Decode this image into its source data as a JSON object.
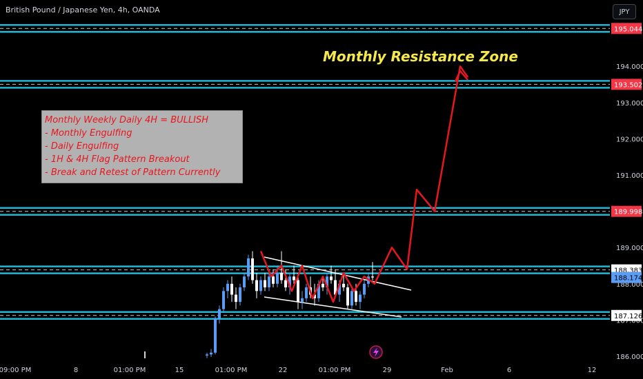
{
  "header": {
    "title": "British Pound / Japanese Yen, 4h, OANDA",
    "currency": "JPY"
  },
  "annotations": {
    "resistance_label": "Monthly Resistance Zone",
    "notes": [
      "Monthly Weekly Daily 4H = BULLISH",
      "- Monthly Engulfing",
      "- Daily Engulfing",
      "- 1H & 4H Flag Pattern Breakout",
      "- Break and Retest of Pattern Currently"
    ]
  },
  "colors": {
    "background": "#000000",
    "candle_up": "#5b9cf5",
    "candle_down": "#ffffff",
    "zone_line": "#22b6d4",
    "price_label_red": "#f23645",
    "projection": "#e8161e",
    "annotation_yellow": "#f5e84a"
  },
  "chart_data": {
    "type": "candlestick",
    "symbol": "British Pound / Japanese Yen, 4h, OANDA",
    "ylim": [
      185.9,
      195.5
    ],
    "y_ticks": [
      "194.000",
      "193.000",
      "192.000",
      "191.000",
      "189.000",
      "188.000",
      "187.000",
      "186.000"
    ],
    "x_ticks": [
      "09:00 PM",
      "8",
      "01:00 PM",
      "15",
      "01:00 PM",
      "22",
      "01:00 PM",
      "29",
      "Feb",
      "6",
      "12"
    ],
    "price_labels": [
      {
        "value": 195.044,
        "label": "195.044",
        "style": "red"
      },
      {
        "value": 193.502,
        "label": "193.502",
        "style": "red"
      },
      {
        "value": 189.998,
        "label": "189.998",
        "style": "red"
      },
      {
        "value": 188.383,
        "label": "188.383",
        "style": "white"
      },
      {
        "value": 188.174,
        "label": "188.174",
        "style": "blue"
      },
      {
        "value": 187.126,
        "label": "187.126",
        "style": "white"
      }
    ],
    "zones": [
      195.044,
      193.502,
      189.998,
      188.383,
      187.126
    ],
    "current_price": 188.174,
    "candles": [
      {
        "o": 186.02,
        "h": 186.1,
        "l": 185.95,
        "c": 186.05
      },
      {
        "o": 186.05,
        "h": 186.2,
        "l": 185.98,
        "c": 186.1
      },
      {
        "o": 186.1,
        "h": 187.1,
        "l": 186.05,
        "c": 187.05
      },
      {
        "o": 187.05,
        "h": 187.4,
        "l": 186.9,
        "c": 187.3
      },
      {
        "o": 187.3,
        "h": 187.9,
        "l": 187.2,
        "c": 187.8
      },
      {
        "o": 187.8,
        "h": 188.1,
        "l": 187.6,
        "c": 188.0
      },
      {
        "o": 188.0,
        "h": 188.2,
        "l": 187.5,
        "c": 187.7
      },
      {
        "o": 187.7,
        "h": 187.9,
        "l": 187.3,
        "c": 187.5
      },
      {
        "o": 187.5,
        "h": 188.0,
        "l": 187.4,
        "c": 187.9
      },
      {
        "o": 187.9,
        "h": 188.3,
        "l": 187.8,
        "c": 188.2
      },
      {
        "o": 188.2,
        "h": 188.8,
        "l": 188.1,
        "c": 188.7
      },
      {
        "o": 188.7,
        "h": 188.9,
        "l": 188.0,
        "c": 188.1
      },
      {
        "o": 188.1,
        "h": 188.3,
        "l": 187.6,
        "c": 187.8
      },
      {
        "o": 187.8,
        "h": 188.2,
        "l": 187.7,
        "c": 188.1
      },
      {
        "o": 188.1,
        "h": 188.3,
        "l": 187.8,
        "c": 187.9
      },
      {
        "o": 187.9,
        "h": 188.3,
        "l": 187.8,
        "c": 188.2
      },
      {
        "o": 188.2,
        "h": 188.4,
        "l": 187.9,
        "c": 188.0
      },
      {
        "o": 188.0,
        "h": 188.5,
        "l": 187.9,
        "c": 188.3
      },
      {
        "o": 188.3,
        "h": 188.9,
        "l": 188.0,
        "c": 188.1
      },
      {
        "o": 188.1,
        "h": 188.4,
        "l": 187.8,
        "c": 187.9
      },
      {
        "o": 187.9,
        "h": 188.3,
        "l": 187.7,
        "c": 188.2
      },
      {
        "o": 188.2,
        "h": 188.5,
        "l": 188.0,
        "c": 188.1
      },
      {
        "o": 188.1,
        "h": 188.3,
        "l": 187.3,
        "c": 187.5
      },
      {
        "o": 187.5,
        "h": 187.8,
        "l": 187.3,
        "c": 187.6
      },
      {
        "o": 187.6,
        "h": 188.0,
        "l": 187.5,
        "c": 187.9
      },
      {
        "o": 187.9,
        "h": 188.2,
        "l": 187.6,
        "c": 187.7
      },
      {
        "o": 187.7,
        "h": 188.0,
        "l": 187.4,
        "c": 187.6
      },
      {
        "o": 187.6,
        "h": 188.1,
        "l": 187.5,
        "c": 188.0
      },
      {
        "o": 188.0,
        "h": 188.2,
        "l": 187.8,
        "c": 187.9
      },
      {
        "o": 187.9,
        "h": 188.3,
        "l": 187.7,
        "c": 188.2
      },
      {
        "o": 188.2,
        "h": 188.5,
        "l": 188.0,
        "c": 188.1
      },
      {
        "o": 188.1,
        "h": 188.4,
        "l": 187.6,
        "c": 187.7
      },
      {
        "o": 187.7,
        "h": 188.1,
        "l": 187.5,
        "c": 188.0
      },
      {
        "o": 188.0,
        "h": 188.3,
        "l": 187.8,
        "c": 187.9
      },
      {
        "o": 187.9,
        "h": 188.0,
        "l": 187.3,
        "c": 187.4
      },
      {
        "o": 187.4,
        "h": 187.9,
        "l": 187.3,
        "c": 187.8
      },
      {
        "o": 187.8,
        "h": 188.0,
        "l": 187.4,
        "c": 187.5
      },
      {
        "o": 187.5,
        "h": 187.8,
        "l": 187.3,
        "c": 187.7
      },
      {
        "o": 187.7,
        "h": 188.1,
        "l": 187.6,
        "c": 188.0
      },
      {
        "o": 188.0,
        "h": 188.3,
        "l": 187.9,
        "c": 188.2
      },
      {
        "o": 188.2,
        "h": 188.6,
        "l": 188.1,
        "c": 188.174
      }
    ],
    "projection": [
      [
        0,
        188.9
      ],
      [
        1,
        188.2
      ],
      [
        2,
        188.5
      ],
      [
        3,
        187.8
      ],
      [
        4,
        188.5
      ],
      [
        5,
        187.6
      ],
      [
        6,
        188.2
      ],
      [
        7,
        187.5
      ],
      [
        8,
        188.3
      ],
      [
        9,
        187.8
      ],
      [
        10,
        188.2
      ],
      [
        11,
        188.0
      ],
      [
        12,
        189.0
      ],
      [
        13,
        188.4
      ],
      [
        14,
        190.6
      ],
      [
        15,
        190.0
      ],
      [
        16,
        194.0
      ],
      [
        17,
        193.7
      ]
    ]
  }
}
